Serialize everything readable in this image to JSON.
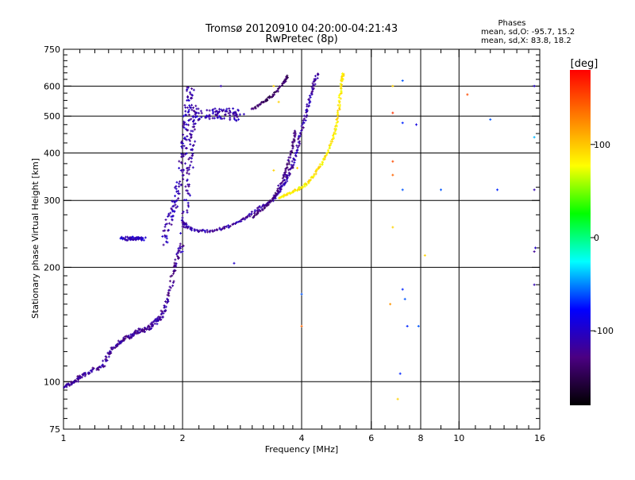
{
  "chart_data": {
    "type": "scatter",
    "title": "Tromsø 20120910 04:20:00-04:21:43",
    "subtitle": "RwPretec (8p)",
    "xlabel": "Frequency [MHz]",
    "ylabel": "Stationary phase Virtual Height [km]",
    "x_scale": "log",
    "y_scale": "log",
    "xlim": [
      1,
      16
    ],
    "ylim": [
      75,
      750
    ],
    "grid": true,
    "x_ticks": [
      {
        "value": 1,
        "label": "1"
      },
      {
        "value": 2,
        "label": "2"
      },
      {
        "value": 4,
        "label": "4"
      },
      {
        "value": 6,
        "label": "6"
      },
      {
        "value": 8,
        "label": "8"
      },
      {
        "value": 10,
        "label": "10"
      },
      {
        "value": 16,
        "label": "16"
      }
    ],
    "x_minor_ticks": [
      1.1,
      1.2,
      1.3,
      1.4,
      1.5,
      1.6,
      1.7,
      1.8,
      1.9,
      2.2,
      2.4,
      2.6,
      2.8,
      3,
      3.2,
      3.4,
      3.6,
      3.8,
      4.5,
      5,
      5.5,
      6.5,
      7,
      7.5,
      9,
      11,
      12,
      13,
      14,
      15
    ],
    "x_grid": [
      2,
      4,
      6,
      8,
      10
    ],
    "y_ticks": [
      {
        "value": 75,
        "label": "75"
      },
      {
        "value": 100,
        "label": "100"
      },
      {
        "value": 200,
        "label": "200"
      },
      {
        "value": 300,
        "label": "300"
      },
      {
        "value": 400,
        "label": "400"
      },
      {
        "value": 500,
        "label": "500"
      },
      {
        "value": 600,
        "label": "600"
      },
      {
        "value": 750,
        "label": "750"
      }
    ],
    "y_minor_ticks": [
      80,
      85,
      90,
      95,
      110,
      120,
      130,
      140,
      150,
      160,
      170,
      180,
      190,
      225,
      250,
      275,
      325,
      350,
      375,
      425,
      450,
      475,
      525,
      550,
      575,
      625,
      650,
      675,
      700,
      725
    ],
    "y_grid": [
      100,
      200,
      300,
      400,
      500,
      600
    ],
    "phase_stats": {
      "heading": "Phases",
      "line_o": "mean, sd,O: -95.7, 15.2",
      "line_x": "mean, sd,X:  83.8, 18.2"
    },
    "colorbar": {
      "label": "[deg]",
      "range": [
        -180,
        180
      ],
      "ticks": [
        {
          "value": 100,
          "label": "100"
        },
        {
          "value": 0,
          "label": "0"
        },
        {
          "value": -100,
          "label": "-100"
        }
      ],
      "stops": [
        "#000000",
        "#4b0082",
        "#0000ff",
        "#00ffff",
        "#00ff00",
        "#ffff00",
        "#ff8000",
        "#ff0000"
      ]
    },
    "traces": [
      {
        "phase": -120,
        "jitter": 0.012,
        "points": [
          [
            1.0,
            97
          ],
          [
            1.04,
            99
          ],
          [
            1.08,
            101
          ],
          [
            1.12,
            104
          ],
          [
            1.18,
            107
          ],
          [
            1.25,
            110
          ],
          [
            1.3,
            118
          ],
          [
            1.35,
            124
          ],
          [
            1.4,
            128
          ],
          [
            1.45,
            131
          ],
          [
            1.5,
            133
          ],
          [
            1.55,
            136
          ],
          [
            1.6,
            137
          ],
          [
            1.65,
            139
          ],
          [
            1.7,
            143
          ],
          [
            1.75,
            147
          ],
          [
            1.8,
            155
          ],
          [
            1.85,
            170
          ],
          [
            1.9,
            195
          ],
          [
            1.95,
            215
          ],
          [
            2.0,
            232
          ]
        ]
      },
      {
        "phase": -110,
        "jitter": 0.02,
        "points": [
          [
            1.8,
            230
          ],
          [
            1.84,
            260
          ],
          [
            1.88,
            280
          ],
          [
            1.92,
            300
          ],
          [
            1.96,
            330
          ],
          [
            2.0,
            380
          ],
          [
            2.02,
            420
          ],
          [
            2.04,
            470
          ],
          [
            2.06,
            520
          ],
          [
            2.08,
            560
          ],
          [
            2.1,
            600
          ]
        ]
      },
      {
        "phase": -115,
        "jitter": 0.018,
        "points": [
          [
            2.0,
            250
          ],
          [
            2.05,
            300
          ],
          [
            2.08,
            350
          ],
          [
            2.1,
            400
          ],
          [
            2.12,
            450
          ],
          [
            2.14,
            500
          ],
          [
            2.16,
            530
          ]
        ]
      },
      {
        "phase": -110,
        "jitter": 0.03,
        "points": [
          [
            2.2,
            500
          ],
          [
            2.3,
            505
          ],
          [
            2.4,
            510
          ],
          [
            2.5,
            505
          ],
          [
            2.6,
            510
          ],
          [
            2.7,
            500
          ],
          [
            2.8,
            515
          ]
        ]
      },
      {
        "phase": -115,
        "jitter": 0.008,
        "points": [
          [
            2.0,
            265
          ],
          [
            2.05,
            255
          ],
          [
            2.2,
            249
          ],
          [
            2.4,
            250
          ],
          [
            2.6,
            255
          ],
          [
            2.8,
            265
          ],
          [
            3.0,
            278
          ],
          [
            3.2,
            290
          ],
          [
            3.4,
            302
          ],
          [
            3.5,
            315
          ],
          [
            3.6,
            330
          ],
          [
            3.7,
            350
          ],
          [
            3.8,
            375
          ],
          [
            3.9,
            410
          ],
          [
            4.0,
            455
          ],
          [
            4.1,
            510
          ],
          [
            4.2,
            560
          ],
          [
            4.3,
            610
          ],
          [
            4.4,
            650
          ]
        ]
      },
      {
        "phase": -130,
        "jitter": 0.006,
        "points": [
          [
            3.0,
            270
          ],
          [
            3.2,
            285
          ],
          [
            3.4,
            305
          ],
          [
            3.6,
            345
          ],
          [
            3.7,
            375
          ],
          [
            3.8,
            420
          ],
          [
            3.85,
            460
          ]
        ]
      },
      {
        "phase": -140,
        "jitter": 0.006,
        "points": [
          [
            3.0,
            520
          ],
          [
            3.2,
            545
          ],
          [
            3.4,
            570
          ],
          [
            3.6,
            610
          ],
          [
            3.7,
            640
          ]
        ]
      },
      {
        "phase": 85,
        "jitter": 0.006,
        "points": [
          [
            3.5,
            305
          ],
          [
            3.7,
            312
          ],
          [
            3.9,
            320
          ],
          [
            4.1,
            330
          ],
          [
            4.3,
            350
          ],
          [
            4.5,
            375
          ],
          [
            4.7,
            410
          ],
          [
            4.85,
            450
          ],
          [
            4.95,
            500
          ],
          [
            5.0,
            560
          ],
          [
            5.05,
            620
          ],
          [
            5.1,
            650
          ]
        ]
      },
      {
        "phase": -105,
        "jitter": 0.01,
        "points": [
          [
            1.4,
            238
          ],
          [
            1.45,
            238
          ],
          [
            1.5,
            238
          ],
          [
            1.55,
            238
          ],
          [
            1.6,
            238
          ]
        ]
      }
    ],
    "scatter_points": [
      [
        6.8,
        600,
        95
      ],
      [
        6.8,
        510,
        160
      ],
      [
        6.8,
        380,
        150
      ],
      [
        6.8,
        350,
        140
      ],
      [
        6.8,
        255,
        95
      ],
      [
        6.7,
        160,
        120
      ],
      [
        7.2,
        620,
        -60
      ],
      [
        7.2,
        480,
        -70
      ],
      [
        7.2,
        320,
        -60
      ],
      [
        7.2,
        175,
        -70
      ],
      [
        7.3,
        165,
        -60
      ],
      [
        7.4,
        140,
        -70
      ],
      [
        7.1,
        105,
        -70
      ],
      [
        7.0,
        90,
        95
      ],
      [
        7.8,
        475,
        -90
      ],
      [
        7.9,
        140,
        -60
      ],
      [
        8.2,
        215,
        95
      ],
      [
        9.0,
        320,
        -60
      ],
      [
        10.5,
        570,
        150
      ],
      [
        12.0,
        490,
        -60
      ],
      [
        12.5,
        320,
        -70
      ],
      [
        15.5,
        600,
        -100
      ],
      [
        15.5,
        440,
        -40
      ],
      [
        15.5,
        320,
        -110
      ],
      [
        15.6,
        225,
        -100
      ],
      [
        15.5,
        180,
        -110
      ],
      [
        15.5,
        220,
        -120
      ],
      [
        4.0,
        170,
        -60
      ],
      [
        4.0,
        140,
        140
      ],
      [
        3.9,
        365,
        95
      ],
      [
        3.4,
        360,
        95
      ],
      [
        3.4,
        600,
        95
      ],
      [
        3.5,
        545,
        95
      ],
      [
        2.5,
        600,
        -110
      ],
      [
        2.0,
        220,
        -100
      ],
      [
        2.7,
        205,
        -100
      ]
    ]
  }
}
